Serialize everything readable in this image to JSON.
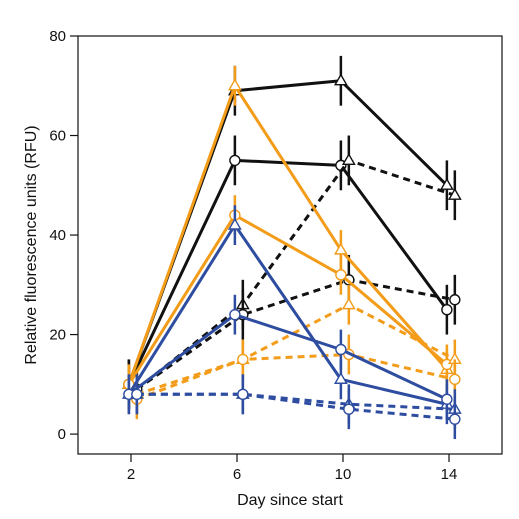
{
  "chart_data": {
    "type": "line",
    "title": "",
    "xlabel": "Day since start",
    "ylabel": "Relative  fluorescence  units (RFU)",
    "x_ticks": [
      2,
      6,
      10,
      14
    ],
    "y_ticks": [
      0,
      20,
      40,
      60,
      80
    ],
    "x_tick_labels": [
      "2",
      "6",
      "10",
      "14"
    ],
    "y_tick_labels": [
      "0",
      "20",
      "40",
      "60",
      "80"
    ],
    "xlim": [
      0,
      16
    ],
    "ylim": [
      -4,
      80
    ],
    "grid": false,
    "legend": "none",
    "colors": {
      "black": "#111111",
      "orange": "#F39C1A",
      "blue": "#2E4DA0"
    },
    "series": [
      {
        "color": "black",
        "dash": "solid",
        "marker": "triangle",
        "x": [
          2,
          6,
          10,
          14
        ],
        "y": [
          10,
          69,
          71,
          50
        ],
        "err": [
          5,
          5,
          5,
          5
        ]
      },
      {
        "color": "black",
        "dash": "solid",
        "marker": "circle",
        "x": [
          2,
          6,
          10,
          14
        ],
        "y": [
          10,
          55,
          54,
          25
        ],
        "err": [
          5,
          5,
          5,
          5
        ]
      },
      {
        "color": "black",
        "dash": "dashed",
        "marker": "triangle",
        "x": [
          2,
          6,
          10,
          14
        ],
        "y": [
          9,
          26,
          55,
          48
        ],
        "err": [
          5,
          5,
          5,
          5
        ]
      },
      {
        "color": "black",
        "dash": "dashed",
        "marker": "circle",
        "x": [
          2,
          6,
          10,
          14
        ],
        "y": [
          9,
          24,
          31,
          27
        ],
        "err": [
          5,
          5,
          5,
          5
        ]
      },
      {
        "color": "orange",
        "dash": "solid",
        "marker": "triangle",
        "x": [
          2,
          6,
          10,
          14
        ],
        "y": [
          10,
          70,
          37,
          13
        ],
        "err": [
          4,
          4,
          4,
          4
        ]
      },
      {
        "color": "orange",
        "dash": "solid",
        "marker": "circle",
        "x": [
          2,
          6,
          10,
          14
        ],
        "y": [
          10,
          44,
          32,
          14
        ],
        "err": [
          4,
          4,
          4,
          4
        ]
      },
      {
        "color": "orange",
        "dash": "dashed",
        "marker": "triangle",
        "x": [
          2,
          6,
          10,
          14
        ],
        "y": [
          8,
          15,
          26,
          15
        ],
        "err": [
          4,
          4,
          4,
          4
        ]
      },
      {
        "color": "orange",
        "dash": "dashed",
        "marker": "circle",
        "x": [
          2,
          6,
          10,
          14
        ],
        "y": [
          7,
          15,
          16,
          11
        ],
        "err": [
          4,
          4,
          4,
          4
        ]
      },
      {
        "color": "blue",
        "dash": "solid",
        "marker": "triangle",
        "x": [
          2,
          6,
          10,
          14
        ],
        "y": [
          8,
          42,
          11,
          6
        ],
        "err": [
          4,
          4,
          4,
          4
        ]
      },
      {
        "color": "blue",
        "dash": "solid",
        "marker": "circle",
        "x": [
          2,
          6,
          10,
          14
        ],
        "y": [
          8,
          24,
          17,
          7
        ],
        "err": [
          4,
          4,
          4,
          4
        ]
      },
      {
        "color": "blue",
        "dash": "dashed",
        "marker": "triangle",
        "x": [
          2,
          6,
          10,
          14
        ],
        "y": [
          8,
          8,
          6,
          5
        ],
        "err": [
          4,
          4,
          4,
          4
        ]
      },
      {
        "color": "blue",
        "dash": "dashed",
        "marker": "circle",
        "x": [
          2,
          6,
          10,
          14
        ],
        "y": [
          8,
          8,
          5,
          3
        ],
        "err": [
          4,
          4,
          4,
          4
        ]
      }
    ]
  }
}
